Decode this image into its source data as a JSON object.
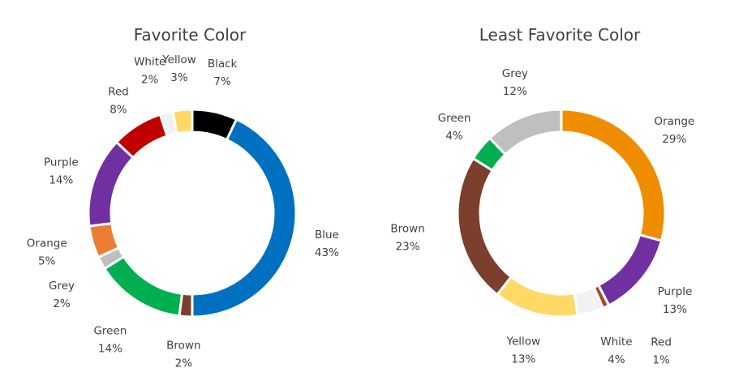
{
  "chart_data": [
    {
      "type": "pie",
      "variant": "doughnut",
      "title": "Favorite Color",
      "labels_show": "category name and percentage",
      "slices": [
        {
          "name": "Black",
          "value": 7,
          "color": "#000000"
        },
        {
          "name": "Blue",
          "value": 43,
          "color": "#0070C0"
        },
        {
          "name": "Brown",
          "value": 2,
          "color": "#7B3F2C"
        },
        {
          "name": "Green",
          "value": 14,
          "color": "#00B050"
        },
        {
          "name": "Grey",
          "value": 2,
          "color": "#BFBFBF"
        },
        {
          "name": "Orange",
          "value": 5,
          "color": "#ED7D31"
        },
        {
          "name": "Purple",
          "value": 14,
          "color": "#7030A0"
        },
        {
          "name": "Red",
          "value": 8,
          "color": "#C00000"
        },
        {
          "name": "White",
          "value": 2,
          "color": "#F2F2F2"
        },
        {
          "name": "Yellow",
          "value": 3,
          "color": "#FFD966"
        }
      ]
    },
    {
      "type": "pie",
      "variant": "doughnut",
      "title": "Least Favorite Color",
      "labels_show": "category name and percentage",
      "slices": [
        {
          "name": "Orange",
          "value": 29,
          "color": "#F08C00"
        },
        {
          "name": "Purple",
          "value": 13,
          "color": "#7030A0"
        },
        {
          "name": "Red",
          "value": 1,
          "color": "#A0522D"
        },
        {
          "name": "White",
          "value": 4,
          "color": "#F2F2F2"
        },
        {
          "name": "Yellow",
          "value": 13,
          "color": "#FFD966"
        },
        {
          "name": "Brown",
          "value": 23,
          "color": "#7B3F2C"
        },
        {
          "name": "Green",
          "value": 4,
          "color": "#00B050"
        },
        {
          "name": "Grey",
          "value": 12,
          "color": "#BFBFBF"
        }
      ]
    }
  ]
}
